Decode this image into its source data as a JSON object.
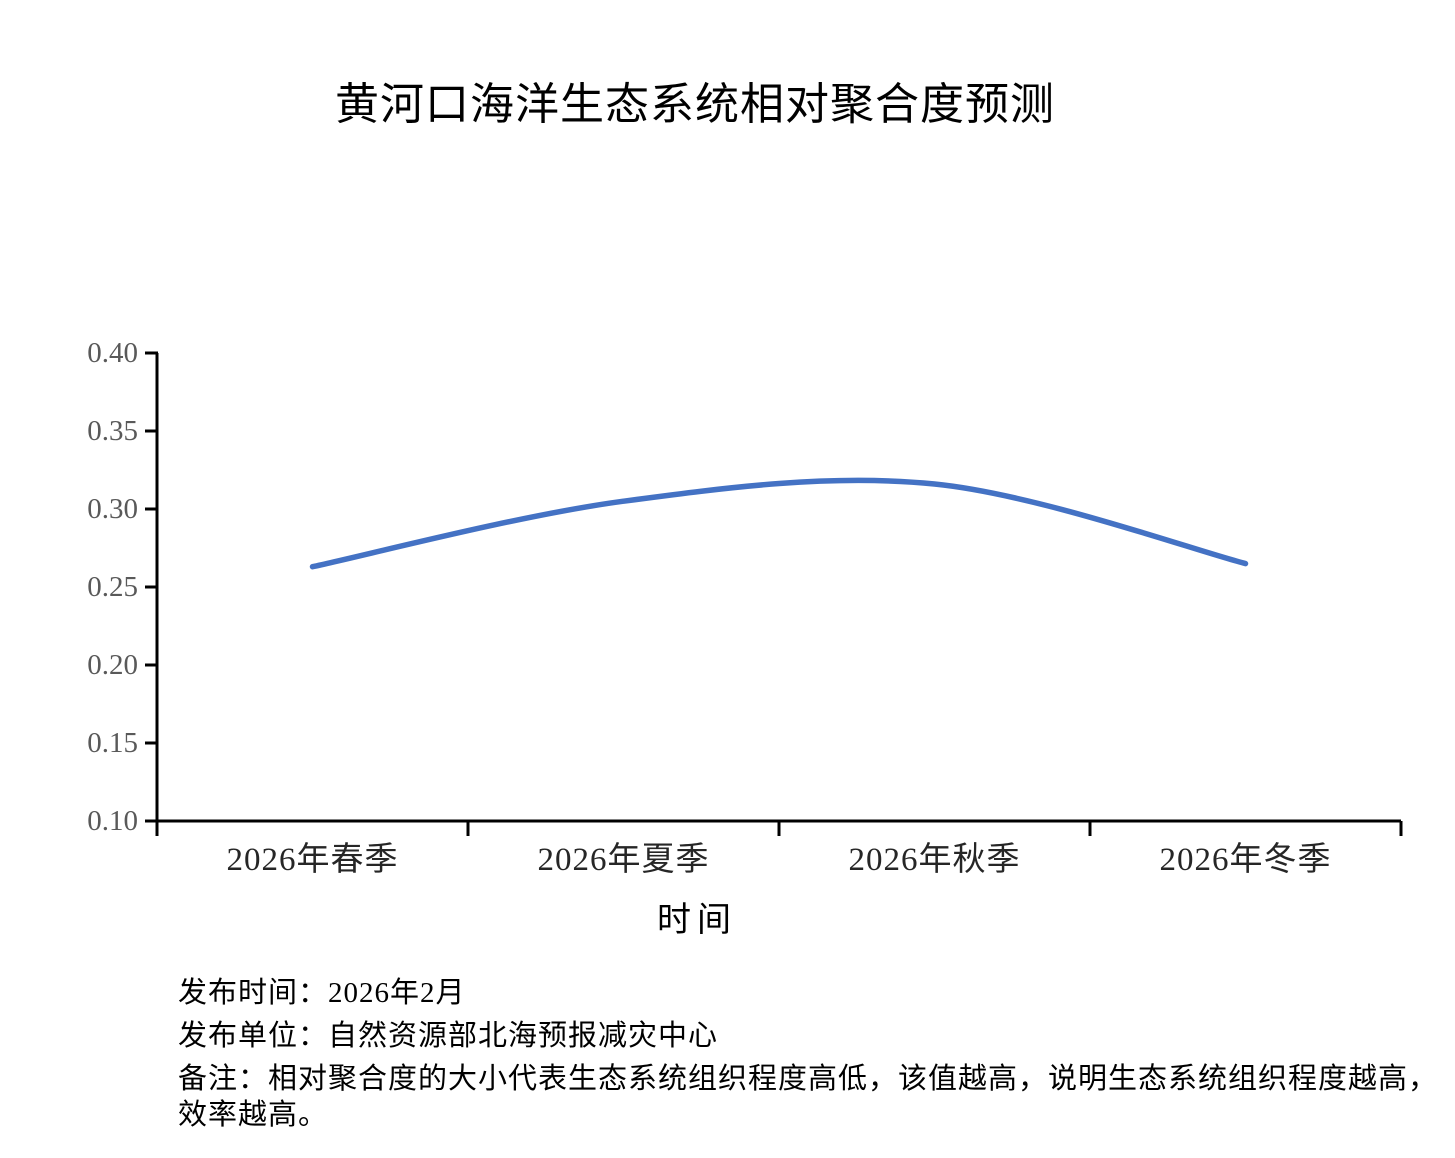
{
  "title": "黄河口海洋生态系统相对聚合度预测",
  "chart_data": {
    "type": "line",
    "title": "黄河口海洋生态系统相对聚合度预测",
    "categories": [
      "2026年春季",
      "2026年夏季",
      "2026年秋季",
      "2026年冬季"
    ],
    "values": [
      0.263,
      0.305,
      0.316,
      0.265
    ],
    "series_name": "相对聚合度",
    "xlabel": "时间",
    "ylabel": "",
    "ylim": [
      0.1,
      0.4
    ],
    "ytick_labels": [
      "0.40",
      "0.35",
      "0.30",
      "0.25",
      "0.20",
      "0.15",
      "0.10"
    ],
    "grid": false,
    "legend": "none",
    "smooth_line": true
  },
  "colors": {
    "line": "#4472C4",
    "axis": "#000000",
    "y_tick_text": "#595959",
    "x_tick_text": "#262626",
    "title_text": "#000000"
  },
  "footer": {
    "line1": "发布时间：2026年2月",
    "line2": "发布单位：自然资源部北海预报减灾中心",
    "line3": "备注：相对聚合度的大小代表生态系统组织程度高低，该值越高，说明生态系统组织程度越高，",
    "line4": "效率越高。"
  }
}
